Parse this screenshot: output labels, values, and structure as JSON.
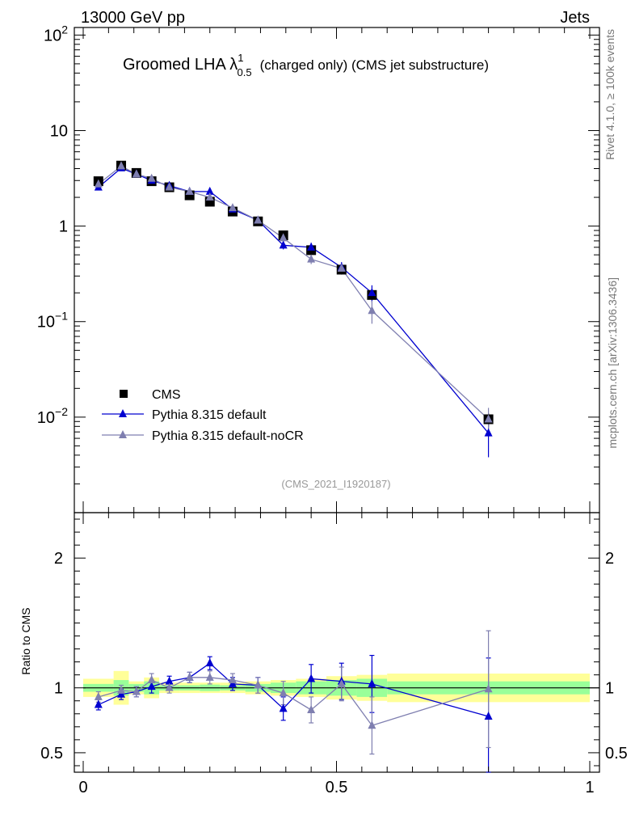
{
  "header": {
    "left": "13000 GeV pp",
    "right": "Jets"
  },
  "side_labels": {
    "rivet": "Rivet 4.1.0, ≥ 100k events",
    "mcplots": "mcplots.cern.ch [arXiv:1306.3436]"
  },
  "title": {
    "main": "Groomed LHA λ",
    "sup": "1",
    "sub": "0.5",
    "suffix": "(charged only) (CMS jet substructure)"
  },
  "analysis_tag": "(CMS_2021_I1920187)",
  "legend": {
    "cms": "CMS",
    "default": "Pythia 8.315 default",
    "nocr": "Pythia 8.315 default-noCR"
  },
  "colors": {
    "cms": "#000000",
    "default": "#0000d0",
    "nocr": "#7f7fb0",
    "band_inner": "#99ff99",
    "band_outer": "#ffff99"
  },
  "chart_data": [
    {
      "type": "scatter",
      "name": "main",
      "yscale": "log",
      "xlim": [
        0,
        1
      ],
      "ylim": [
        0.001,
        120
      ],
      "yticks": [
        {
          "v": 100,
          "base": "10",
          "exp": "2"
        },
        {
          "v": 10,
          "label": "10"
        },
        {
          "v": 1,
          "label": "1"
        },
        {
          "v": 0.1,
          "base": "10",
          "exp": "−1"
        },
        {
          "v": 0.01,
          "base": "10",
          "exp": "−2"
        }
      ],
      "x": [
        0.03,
        0.075,
        0.105,
        0.135,
        0.17,
        0.21,
        0.25,
        0.295,
        0.345,
        0.395,
        0.45,
        0.51,
        0.57,
        0.8
      ],
      "series": [
        {
          "name": "CMS",
          "values": [
            2.95,
            4.3,
            3.6,
            2.95,
            2.55,
            2.1,
            1.8,
            1.42,
            1.12,
            0.8,
            0.56,
            0.35,
            0.19,
            0.0095
          ],
          "err": [
            0.1,
            0.1,
            0.1,
            0.1,
            0.1,
            0.1,
            0.08,
            0.07,
            0.06,
            0.05,
            0.04,
            0.03,
            0.02,
            0.0015
          ]
        },
        {
          "name": "Pythia 8.315 default",
          "values": [
            2.55,
            4.05,
            3.5,
            3.0,
            2.65,
            2.3,
            2.3,
            1.5,
            1.15,
            0.63,
            0.6,
            0.37,
            0.2,
            0.0068
          ],
          "err": [
            0.12,
            0.1,
            0.1,
            0.1,
            0.1,
            0.1,
            0.1,
            0.08,
            0.07,
            0.06,
            0.07,
            0.05,
            0.04,
            0.003
          ]
        },
        {
          "name": "Pythia 8.315 default-noCR",
          "values": [
            2.75,
            4.25,
            3.5,
            3.15,
            2.55,
            2.3,
            2.0,
            1.55,
            1.15,
            0.75,
            0.45,
            0.36,
            0.13,
            0.0095
          ],
          "err": [
            0.12,
            0.1,
            0.1,
            0.1,
            0.1,
            0.1,
            0.1,
            0.08,
            0.07,
            0.06,
            0.05,
            0.05,
            0.035,
            0.003
          ]
        }
      ]
    },
    {
      "type": "scatter",
      "name": "ratio",
      "ylabel": "Ratio to CMS",
      "xlim": [
        0,
        1
      ],
      "ylim": [
        0.35,
        2.35
      ],
      "yticks": [
        {
          "v": 2,
          "label": "2"
        },
        {
          "v": 1,
          "label": "1"
        },
        {
          "v": 0.5,
          "label": "0.5"
        }
      ],
      "xticks": [
        {
          "v": 0,
          "label": "0"
        },
        {
          "v": 0.5,
          "label": "0.5"
        },
        {
          "v": 1,
          "label": "1"
        }
      ],
      "bands": [
        {
          "x0": 0.0,
          "x1": 0.06,
          "inner": 0.03,
          "outer": 0.07
        },
        {
          "x0": 0.06,
          "x1": 0.09,
          "inner": 0.06,
          "outer": 0.13
        },
        {
          "x0": 0.09,
          "x1": 0.12,
          "inner": 0.03,
          "outer": 0.05
        },
        {
          "x0": 0.12,
          "x1": 0.15,
          "inner": 0.05,
          "outer": 0.08
        },
        {
          "x0": 0.15,
          "x1": 0.19,
          "inner": 0.02,
          "outer": 0.04
        },
        {
          "x0": 0.19,
          "x1": 0.23,
          "inner": 0.02,
          "outer": 0.04
        },
        {
          "x0": 0.23,
          "x1": 0.27,
          "inner": 0.025,
          "outer": 0.04
        },
        {
          "x0": 0.27,
          "x1": 0.32,
          "inner": 0.02,
          "outer": 0.04
        },
        {
          "x0": 0.32,
          "x1": 0.37,
          "inner": 0.03,
          "outer": 0.05
        },
        {
          "x0": 0.37,
          "x1": 0.42,
          "inner": 0.04,
          "outer": 0.06
        },
        {
          "x0": 0.42,
          "x1": 0.48,
          "inner": 0.05,
          "outer": 0.07
        },
        {
          "x0": 0.48,
          "x1": 0.54,
          "inner": 0.06,
          "outer": 0.09
        },
        {
          "x0": 0.54,
          "x1": 0.6,
          "inner": 0.07,
          "outer": 0.1
        },
        {
          "x0": 0.6,
          "x1": 1.0,
          "inner": 0.05,
          "outer": 0.11
        }
      ],
      "x": [
        0.03,
        0.075,
        0.105,
        0.135,
        0.17,
        0.21,
        0.25,
        0.295,
        0.345,
        0.395,
        0.45,
        0.51,
        0.57,
        0.8
      ],
      "series": [
        {
          "name": "Pythia 8.315 default",
          "values": [
            0.87,
            0.95,
            0.97,
            1.01,
            1.05,
            1.08,
            1.19,
            1.03,
            1.02,
            0.84,
            1.07,
            1.05,
            1.03,
            0.78
          ],
          "err": [
            0.04,
            0.04,
            0.04,
            0.05,
            0.04,
            0.04,
            0.05,
            0.05,
            0.06,
            0.09,
            0.11,
            0.14,
            0.22,
            0.45
          ]
        },
        {
          "name": "Pythia 8.315 default-noCR",
          "values": [
            0.93,
            0.98,
            0.97,
            1.06,
            1.0,
            1.08,
            1.08,
            1.06,
            1.02,
            0.96,
            0.83,
            1.03,
            0.71,
            0.99
          ],
          "err": [
            0.04,
            0.04,
            0.04,
            0.05,
            0.04,
            0.04,
            0.05,
            0.05,
            0.06,
            0.09,
            0.1,
            0.13,
            0.22,
            0.45
          ]
        }
      ]
    }
  ]
}
